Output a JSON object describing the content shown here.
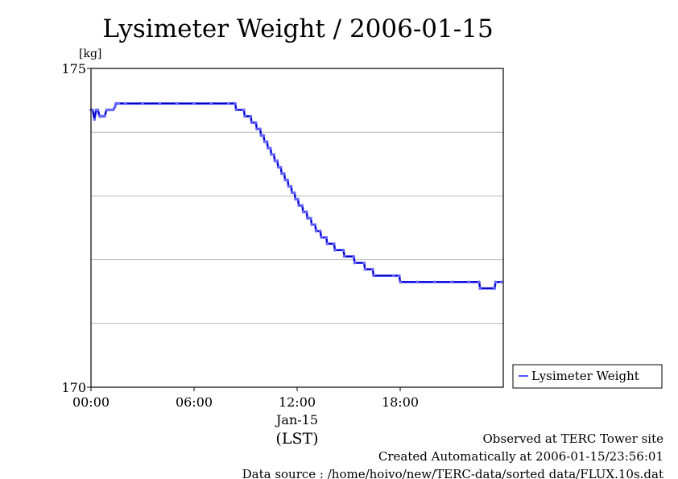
{
  "chart_data": {
    "type": "line",
    "title": "Lysimeter Weight / 2006-01-15",
    "ylabel": "[kg]",
    "xlabel": "(LST)",
    "date_label": "Jan-15",
    "x_unit": "hours (LST)",
    "xlim": [
      0,
      24
    ],
    "ylim": [
      170,
      175
    ],
    "x_ticks": [
      {
        "value": 0,
        "label": "00:00"
      },
      {
        "value": 6,
        "label": "06:00"
      },
      {
        "value": 12,
        "label": "12:00"
      },
      {
        "value": 18,
        "label": "18:00"
      }
    ],
    "y_ticks": [
      {
        "value": 170,
        "label": "170"
      },
      {
        "value": 175,
        "label": "175"
      }
    ],
    "grid": {
      "horizontal": [
        171,
        172,
        173,
        174
      ]
    },
    "legend": {
      "placement": "right",
      "entries": [
        "Lysimeter Weight"
      ]
    },
    "series": [
      {
        "name": "Lysimeter Weight",
        "color": "#1a1aff",
        "x": [
          0.0,
          0.1,
          0.2,
          0.3,
          0.4,
          0.5,
          0.55,
          0.6,
          0.7,
          0.8,
          0.9,
          1.0,
          1.05,
          1.1,
          1.2,
          1.3,
          1.4,
          1.45,
          1.5,
          1.6,
          2.0,
          3.0,
          4.0,
          5.0,
          6.0,
          7.0,
          8.0,
          8.4,
          8.45,
          8.9,
          8.95,
          9.3,
          9.35,
          9.6,
          9.65,
          9.85,
          9.9,
          10.05,
          10.1,
          10.25,
          10.3,
          10.45,
          10.5,
          10.65,
          10.7,
          10.85,
          10.9,
          11.05,
          11.1,
          11.25,
          11.3,
          11.45,
          11.5,
          11.65,
          11.7,
          11.85,
          11.9,
          12.05,
          12.1,
          12.3,
          12.35,
          12.55,
          12.6,
          12.8,
          12.85,
          13.05,
          13.1,
          13.35,
          13.4,
          13.7,
          13.75,
          14.15,
          14.2,
          14.7,
          14.75,
          15.3,
          15.35,
          15.9,
          15.95,
          16.4,
          16.45,
          17.6,
          17.95,
          18.0,
          19.0,
          20.0,
          21.0,
          22.0,
          22.6,
          22.65,
          23.5,
          23.55,
          23.9
        ],
        "y": [
          174.35,
          174.35,
          174.2,
          174.35,
          174.35,
          174.25,
          174.25,
          174.25,
          174.25,
          174.25,
          174.35,
          174.35,
          174.35,
          174.35,
          174.35,
          174.35,
          174.4,
          174.45,
          174.45,
          174.45,
          174.45,
          174.45,
          174.45,
          174.45,
          174.45,
          174.45,
          174.45,
          174.45,
          174.35,
          174.35,
          174.25,
          174.25,
          174.15,
          174.15,
          174.05,
          174.05,
          173.95,
          173.95,
          173.85,
          173.85,
          173.75,
          173.75,
          173.65,
          173.65,
          173.55,
          173.55,
          173.45,
          173.45,
          173.35,
          173.35,
          173.25,
          173.25,
          173.15,
          173.15,
          173.05,
          173.05,
          172.95,
          172.95,
          172.85,
          172.85,
          172.75,
          172.75,
          172.65,
          172.65,
          172.55,
          172.55,
          172.45,
          172.45,
          172.35,
          172.35,
          172.25,
          172.25,
          172.15,
          172.15,
          172.05,
          172.05,
          171.95,
          171.95,
          171.85,
          171.85,
          171.75,
          171.75,
          171.75,
          171.65,
          171.65,
          171.65,
          171.65,
          171.65,
          171.65,
          171.55,
          171.55,
          171.65,
          171.65
        ]
      }
    ]
  },
  "footer": {
    "line1": "Observed at TERC Tower site",
    "line2": "Created Automatically at 2006-01-15/23:56:01",
    "line3": "Data source : /home/hoivo/new/TERC-data/sorted  data/FLUX.10s.dat"
  }
}
